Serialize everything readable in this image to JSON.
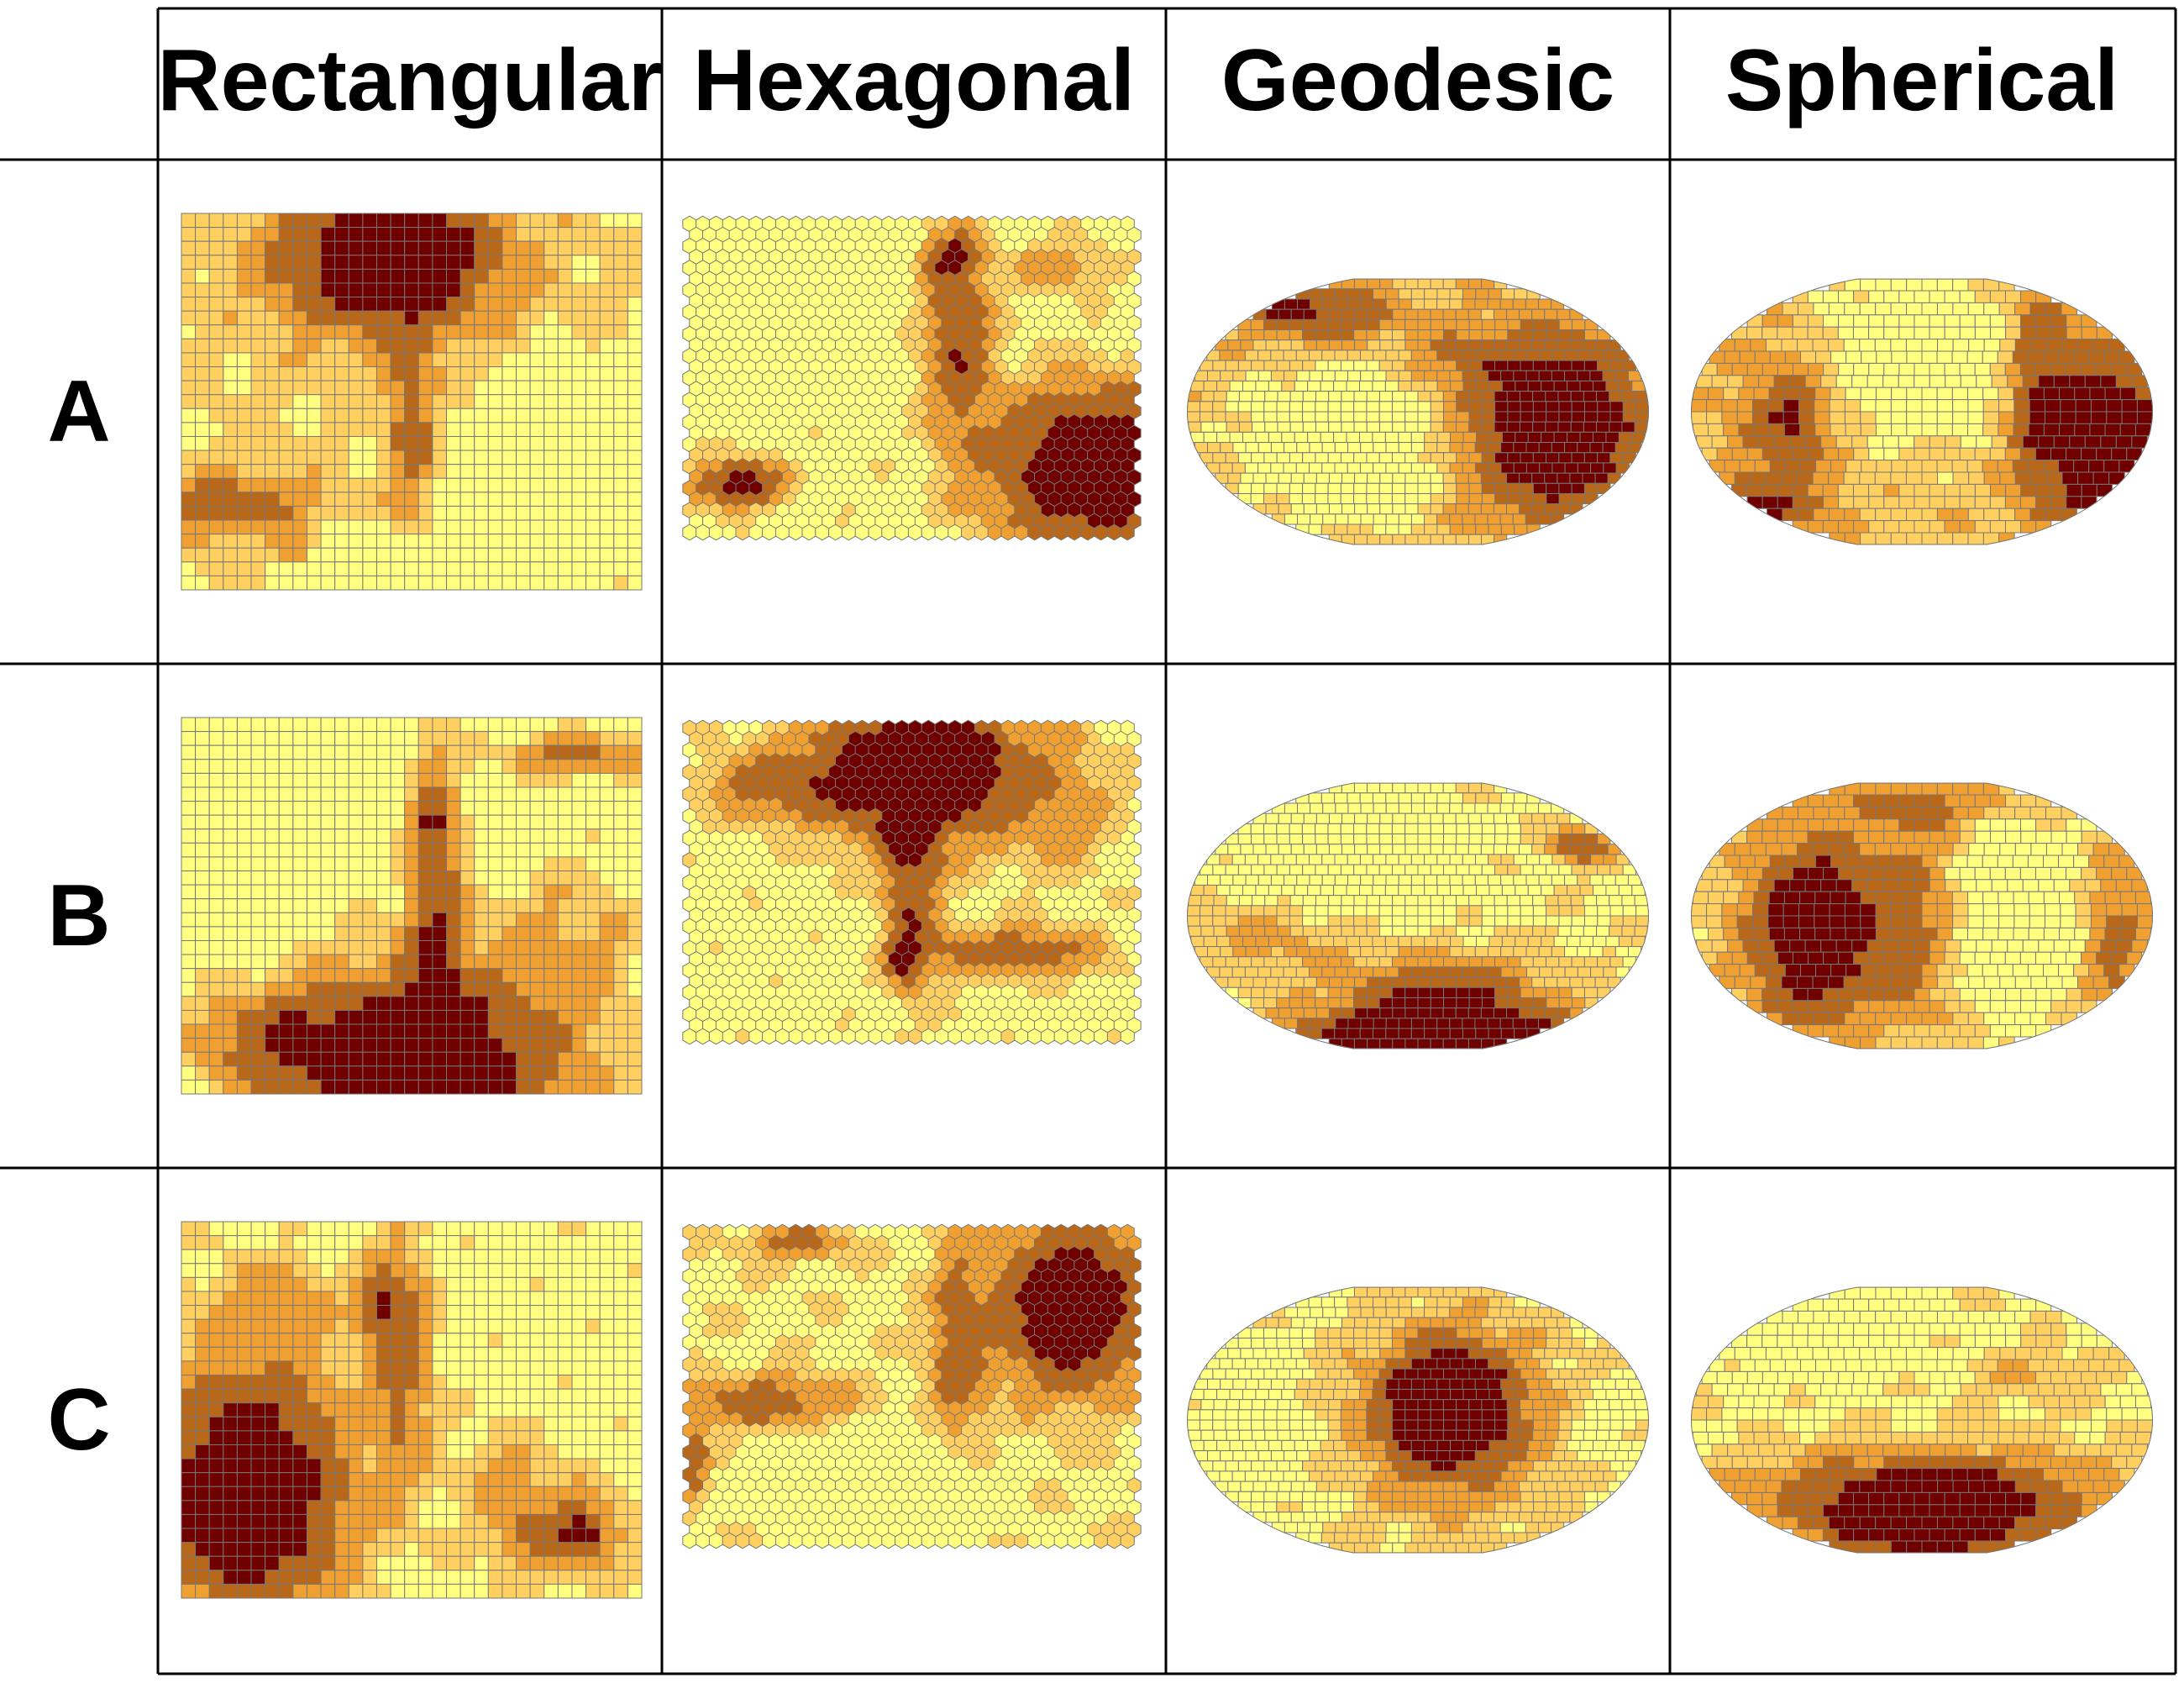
{
  "columns": [
    "Rectangular",
    "Hexagonal",
    "Geodesic",
    "Spherical"
  ],
  "rows": [
    "A",
    "B",
    "C"
  ],
  "colors": {
    "level1": "#ffff80",
    "level2": "#ffd060",
    "level3": "#f0a030",
    "level4": "#b86818",
    "level5": "#700000",
    "cell_edge": "#777777",
    "grid_line": "#000000"
  }
}
